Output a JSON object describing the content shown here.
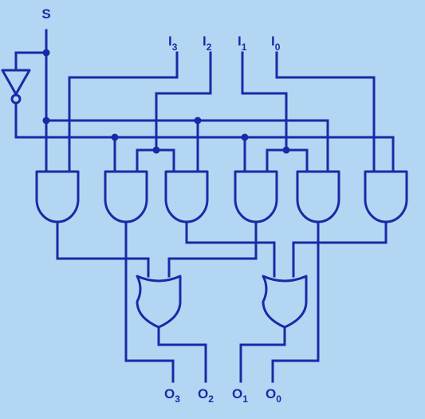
{
  "colors": {
    "background": "#b3d6f3",
    "ink": "#1a2aa6"
  },
  "select": {
    "name": "S"
  },
  "inputs": [
    {
      "base": "I",
      "sub": "3"
    },
    {
      "base": "I",
      "sub": "2"
    },
    {
      "base": "I",
      "sub": "1"
    },
    {
      "base": "I",
      "sub": "0"
    }
  ],
  "outputs": [
    {
      "base": "O",
      "sub": "3"
    },
    {
      "base": "O",
      "sub": "2"
    },
    {
      "base": "O",
      "sub": "1"
    },
    {
      "base": "O",
      "sub": "0"
    }
  ],
  "components": {
    "not_gates": 1,
    "and_gates": 6,
    "or_gates": 2
  }
}
